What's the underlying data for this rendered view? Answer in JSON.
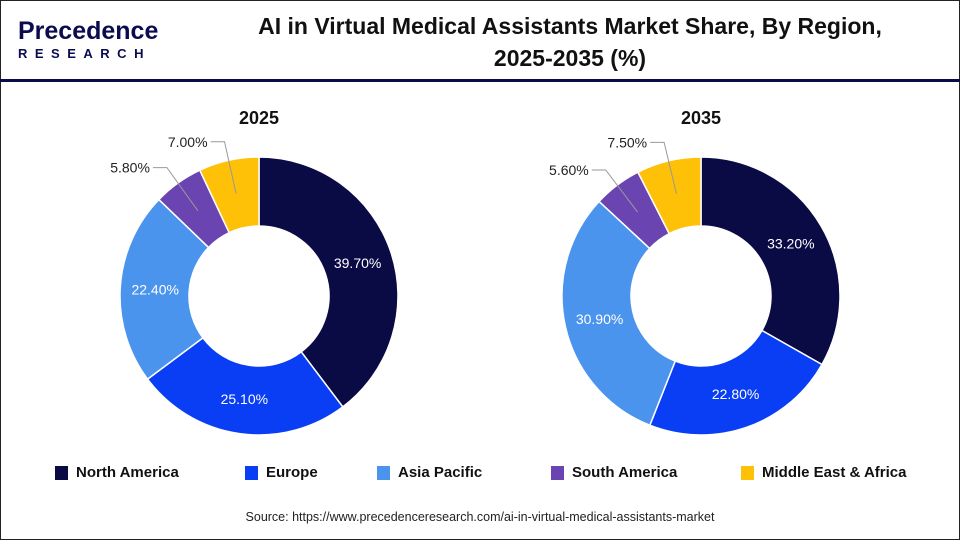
{
  "logo": {
    "line1": "Precedence",
    "line2": "RESEARCH"
  },
  "title_lines": [
    "AI in Virtual Medical Assistants Market Share, By Region,",
    "2025-2035 (%)"
  ],
  "source": "Source: https://www.precedenceresearch.com/ai-in-virtual-medical-assistants-market",
  "chart_data": [
    {
      "type": "pie",
      "subtype": "donut",
      "title": "2025",
      "categories": [
        "North America",
        "Europe",
        "Asia Pacific",
        "South America",
        "Middle East & Africa"
      ],
      "values": [
        39.7,
        25.1,
        22.4,
        5.8,
        7.0
      ],
      "labels": [
        "39.70%",
        "25.10%",
        "22.40%",
        "5.80%",
        "7.00%"
      ]
    },
    {
      "type": "pie",
      "subtype": "donut",
      "title": "2035",
      "categories": [
        "North America",
        "Europe",
        "Asia Pacific",
        "South America",
        "Middle East & Africa"
      ],
      "values": [
        33.2,
        22.8,
        30.9,
        5.6,
        7.5
      ],
      "labels": [
        "33.20%",
        "22.80%",
        "30.90%",
        "5.60%",
        "7.50%"
      ]
    }
  ],
  "legend": {
    "position": "bottom",
    "items": [
      {
        "label": "North America",
        "color": "#0a0a45"
      },
      {
        "label": "Europe",
        "color": "#0a3ef5"
      },
      {
        "label": "Asia Pacific",
        "color": "#4a94ee"
      },
      {
        "label": "South America",
        "color": "#6a44b0"
      },
      {
        "label": "Middle East & Africa",
        "color": "#ffc107"
      }
    ]
  }
}
